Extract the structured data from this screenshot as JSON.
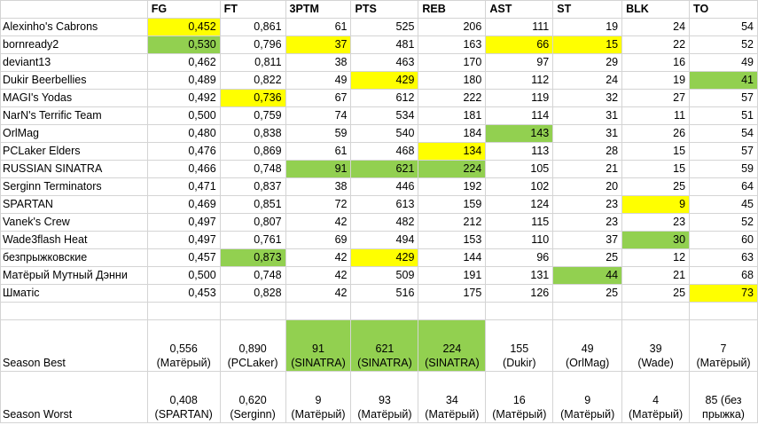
{
  "headers": [
    "",
    "FG",
    "FT",
    "3PTM",
    "PTS",
    "REB",
    "AST",
    "ST",
    "BLK",
    "TO"
  ],
  "colors": {
    "yellow": "#ffff00",
    "green": "#92d050"
  },
  "rows": [
    {
      "team": "Alexinho's Cabrons",
      "cells": [
        "0,452",
        "0,861",
        "61",
        "525",
        "206",
        "111",
        "19",
        "24",
        "54"
      ],
      "hl": [
        "y",
        "",
        "",
        "",
        "",
        "",
        "",
        "",
        ""
      ]
    },
    {
      "team": "bornready2",
      "cells": [
        "0,530",
        "0,796",
        "37",
        "481",
        "163",
        "66",
        "15",
        "22",
        "52"
      ],
      "hl": [
        "g",
        "",
        "y",
        "",
        "",
        "y",
        "y",
        "",
        ""
      ]
    },
    {
      "team": "deviant13",
      "cells": [
        "0,462",
        "0,811",
        "38",
        "463",
        "170",
        "97",
        "29",
        "16",
        "49"
      ],
      "hl": [
        "",
        "",
        "",
        "",
        "",
        "",
        "",
        "",
        ""
      ]
    },
    {
      "team": "Dukir Beerbellies",
      "cells": [
        "0,489",
        "0,822",
        "49",
        "429",
        "180",
        "112",
        "24",
        "19",
        "41"
      ],
      "hl": [
        "",
        "",
        "",
        "y",
        "",
        "",
        "",
        "",
        "g"
      ]
    },
    {
      "team": "MAGI's Yodas",
      "cells": [
        "0,492",
        "0,736",
        "67",
        "612",
        "222",
        "119",
        "32",
        "27",
        "57"
      ],
      "hl": [
        "",
        "y",
        "",
        "",
        "",
        "",
        "",
        "",
        ""
      ]
    },
    {
      "team": "NarN's Terrific Team",
      "cells": [
        "0,500",
        "0,759",
        "74",
        "534",
        "181",
        "114",
        "31",
        "11",
        "51"
      ],
      "hl": [
        "",
        "",
        "",
        "",
        "",
        "",
        "",
        "",
        ""
      ]
    },
    {
      "team": "OrlMag",
      "cells": [
        "0,480",
        "0,838",
        "59",
        "540",
        "184",
        "143",
        "31",
        "26",
        "54"
      ],
      "hl": [
        "",
        "",
        "",
        "",
        "",
        "g",
        "",
        "",
        ""
      ]
    },
    {
      "team": "PCLaker Elders",
      "cells": [
        "0,476",
        "0,869",
        "61",
        "468",
        "134",
        "113",
        "28",
        "15",
        "57"
      ],
      "hl": [
        "",
        "",
        "",
        "",
        "y",
        "",
        "",
        "",
        ""
      ]
    },
    {
      "team": "RUSSIAN SINATRA",
      "cells": [
        "0,466",
        "0,748",
        "91",
        "621",
        "224",
        "105",
        "21",
        "15",
        "59"
      ],
      "hl": [
        "",
        "",
        "g",
        "g",
        "g",
        "",
        "",
        "",
        ""
      ]
    },
    {
      "team": "Serginn Terminators",
      "cells": [
        "0,471",
        "0,837",
        "38",
        "446",
        "192",
        "102",
        "20",
        "25",
        "64"
      ],
      "hl": [
        "",
        "",
        "",
        "",
        "",
        "",
        "",
        "",
        ""
      ]
    },
    {
      "team": "SPARTAN",
      "cells": [
        "0,469",
        "0,851",
        "72",
        "613",
        "159",
        "124",
        "23",
        "9",
        "45"
      ],
      "hl": [
        "",
        "",
        "",
        "",
        "",
        "",
        "",
        "y",
        ""
      ]
    },
    {
      "team": "Vanek's Crew",
      "cells": [
        "0,497",
        "0,807",
        "42",
        "482",
        "212",
        "115",
        "23",
        "23",
        "52"
      ],
      "hl": [
        "",
        "",
        "",
        "",
        "",
        "",
        "",
        "",
        ""
      ]
    },
    {
      "team": "Wade3flash Heat",
      "cells": [
        "0,497",
        "0,761",
        "69",
        "494",
        "153",
        "110",
        "37",
        "30",
        "60"
      ],
      "hl": [
        "",
        "",
        "",
        "",
        "",
        "",
        "",
        "g",
        ""
      ]
    },
    {
      "team": "безпрыжковские",
      "cells": [
        "0,457",
        "0,873",
        "42",
        "429",
        "144",
        "96",
        "25",
        "12",
        "63"
      ],
      "hl": [
        "",
        "g",
        "",
        "y",
        "",
        "",
        "",
        "",
        ""
      ]
    },
    {
      "team": "Матёрый Мутный Дэнни",
      "cells": [
        "0,500",
        "0,748",
        "42",
        "509",
        "191",
        "131",
        "44",
        "21",
        "68"
      ],
      "hl": [
        "",
        "",
        "",
        "",
        "",
        "",
        "g",
        "",
        ""
      ]
    },
    {
      "team": "Шматic",
      "cells": [
        "0,453",
        "0,828",
        "42",
        "516",
        "175",
        "126",
        "25",
        "25",
        "73"
      ],
      "hl": [
        "",
        "",
        "",
        "",
        "",
        "",
        "",
        "",
        "y"
      ]
    }
  ],
  "season_best": {
    "label": "Season Best",
    "cells": [
      {
        "value": "0,556",
        "who": "(Матёрый)"
      },
      {
        "value": "0,890",
        "who": "(PCLaker)"
      },
      {
        "value": "91",
        "who": "(SINATRA)"
      },
      {
        "value": "621",
        "who": "(SINATRA)"
      },
      {
        "value": "224",
        "who": "(SINATRA)"
      },
      {
        "value": "155",
        "who": "(Dukir)"
      },
      {
        "value": "49",
        "who": "(OrlMag)"
      },
      {
        "value": "39",
        "who": "(Wade)"
      },
      {
        "value": "7",
        "who": "(Матёрый)"
      }
    ],
    "hl": [
      "",
      "",
      "g",
      "g",
      "g",
      "",
      "",
      "",
      ""
    ]
  },
  "season_worst": {
    "label": "Season Worst",
    "cells": [
      {
        "value": "0,408",
        "who": "(SPARTAN)"
      },
      {
        "value": "0,620",
        "who": "(Serginn)"
      },
      {
        "value": "9",
        "who": "(Матёрый)"
      },
      {
        "value": "93",
        "who": "(Матёрый)"
      },
      {
        "value": "34",
        "who": "(Матёрый)"
      },
      {
        "value": "16",
        "who": "(Матёрый)"
      },
      {
        "value": "9",
        "who": "(Матёрый)"
      },
      {
        "value": "4",
        "who": "(Матёрый)"
      },
      {
        "value": "85 (без",
        "who": "прыжка)"
      }
    ],
    "hl": [
      "",
      "",
      "",
      "",
      "",
      "",
      "",
      "",
      ""
    ]
  }
}
